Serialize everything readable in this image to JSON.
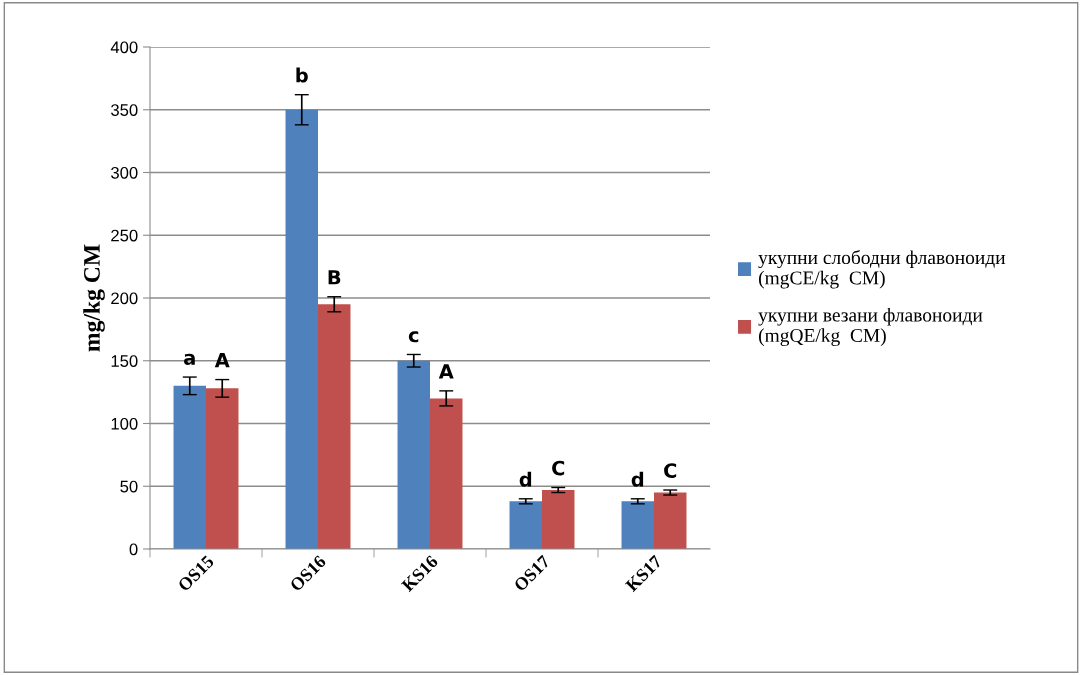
{
  "chart_data": {
    "type": "bar",
    "ylabel": "mg/kg СМ",
    "categories": [
      "OS15",
      "OS16",
      "KS16",
      "OS17",
      "KS17"
    ],
    "series": [
      {
        "name": "укупни слободни флавоноиди (mgCE/kg  СМ)",
        "color": "#4f81bd",
        "values": [
          130,
          350,
          150,
          38,
          38
        ],
        "errors": [
          7,
          12,
          5,
          2,
          2
        ],
        "value_labels": [
          "a",
          "b",
          "c",
          "d",
          "d"
        ]
      },
      {
        "name": "укупни везани флавоноиди (mgQE/kg  СМ)",
        "color": "#c0504d",
        "values": [
          128,
          195,
          120,
          47,
          45
        ],
        "errors": [
          7,
          6,
          6,
          2,
          2
        ],
        "value_labels": [
          "A",
          "B",
          "A",
          "C",
          "C"
        ]
      }
    ],
    "ylim": [
      0,
      400
    ],
    "yticks": [
      0,
      50,
      100,
      150,
      200,
      250,
      300,
      350,
      400
    ],
    "grid": "y",
    "legend": "right"
  }
}
